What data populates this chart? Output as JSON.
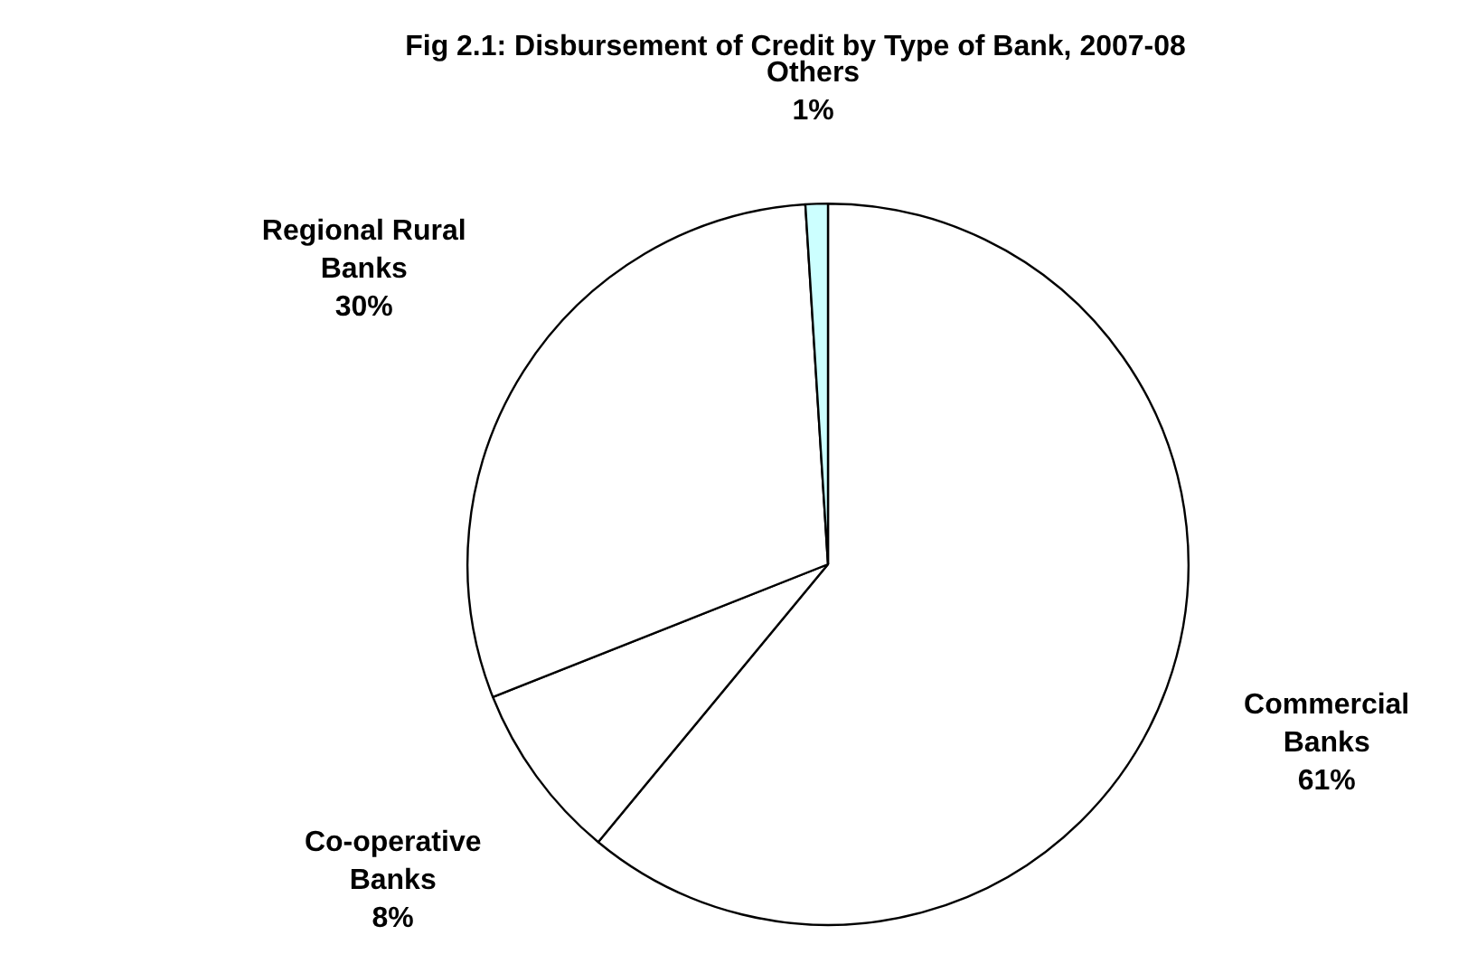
{
  "chart_data": {
    "type": "pie",
    "title": "Fig 2.1: Disbursement of Credit by Type of Bank, 2007-08",
    "categories": [
      "Commercial Banks",
      "Co-operative Banks",
      "Regional Rural Banks",
      "Others"
    ],
    "values": [
      61,
      8,
      30,
      1
    ],
    "colors": [
      "#ffffff",
      "#ffffff",
      "#ffffff",
      "#ccffff"
    ],
    "value_labels": [
      "61%",
      "8%",
      "30%",
      "1%"
    ],
    "legend": false
  }
}
